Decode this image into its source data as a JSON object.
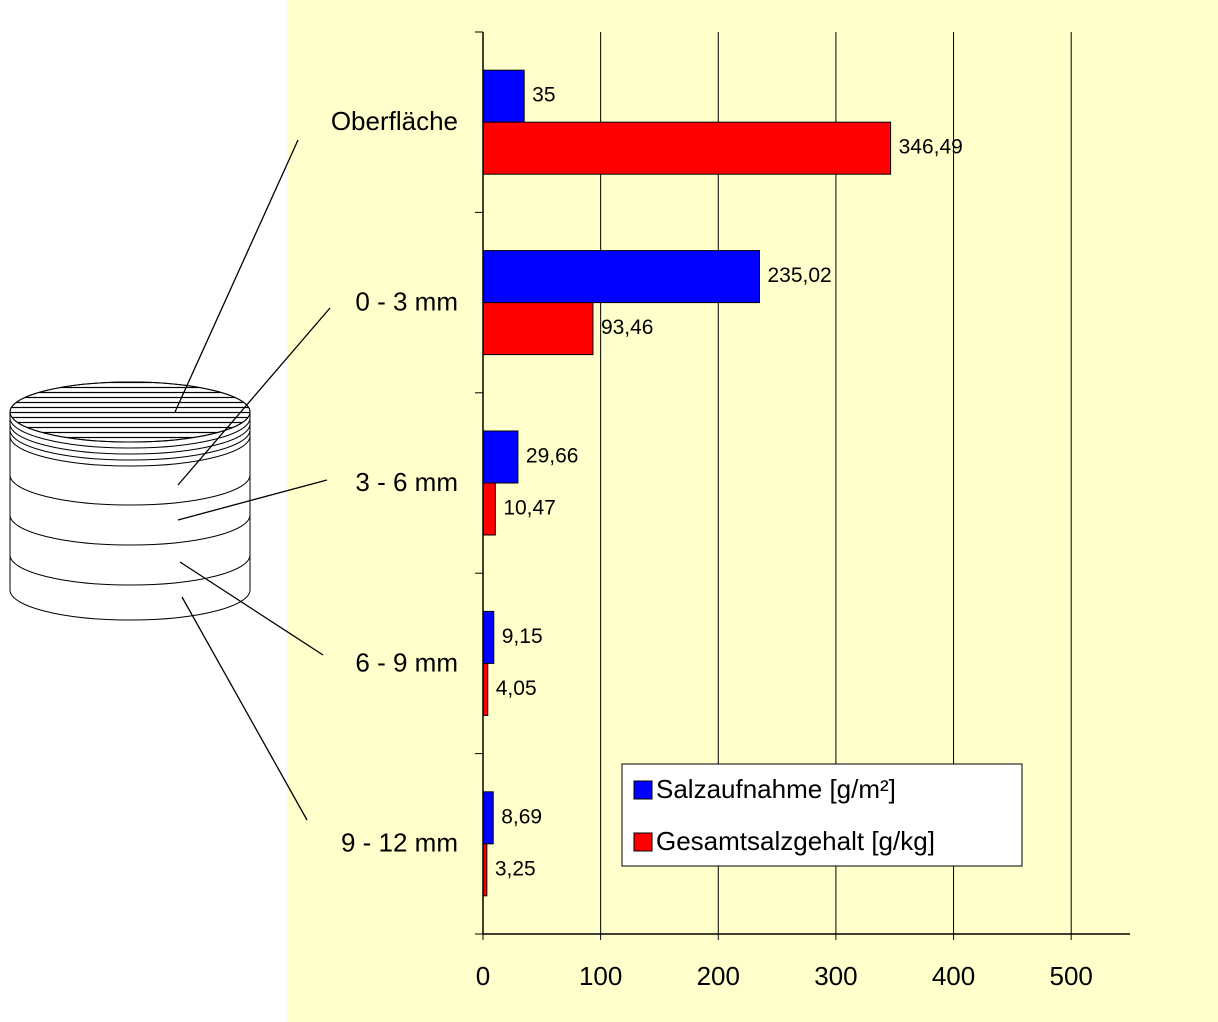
{
  "chart_data": {
    "type": "bar",
    "orientation": "horizontal",
    "categories": [
      "Oberfläche",
      "0 - 3 mm",
      "3 - 6 mm",
      "6 - 9 mm",
      "9 - 12 mm"
    ],
    "series": [
      {
        "name": "Salzaufnahme [g/m²]",
        "color": "#0000ff",
        "values": [
          35,
          235.02,
          29.66,
          9.15,
          8.69
        ],
        "value_labels": [
          "35",
          "235,02",
          "29,66",
          "9,15",
          "8,69"
        ]
      },
      {
        "name": "Gesamtsalzgehalt [g/kg]",
        "color": "#ff0000",
        "values": [
          346.49,
          93.46,
          10.47,
          4.05,
          3.25
        ],
        "value_labels": [
          "346,49",
          "93,46",
          "10,47",
          "4,05",
          "3,25"
        ]
      }
    ],
    "xlim": [
      0,
      550
    ],
    "xticks": [
      0,
      100,
      200,
      300,
      400,
      500
    ],
    "grid": true,
    "legend": "lower-right"
  }
}
